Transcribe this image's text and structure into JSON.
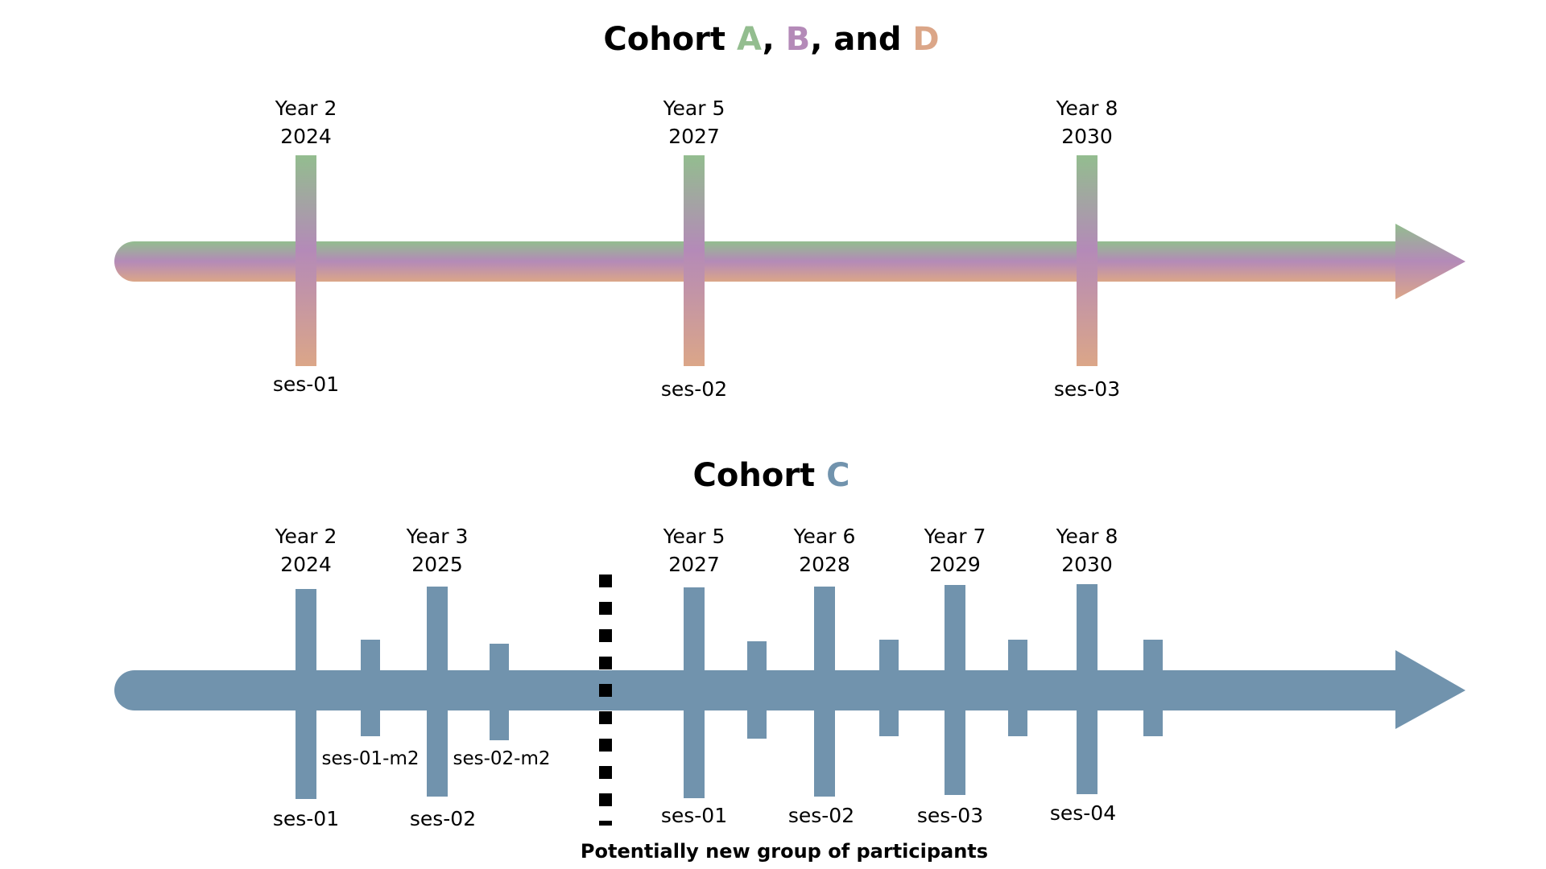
{
  "top": {
    "title_prefix": "Cohort ",
    "cohort_a": "A",
    "sep1": ", ",
    "cohort_b": "B",
    "sep2": ", and ",
    "cohort_d": "D",
    "color_a": "#93bd8f",
    "color_b": "#b48ab8",
    "color_d": "#dba688",
    "markers": [
      {
        "year": "Year 2",
        "date": "2024",
        "session": "ses-01"
      },
      {
        "year": "Year 5",
        "date": "2027",
        "session": "ses-02"
      },
      {
        "year": "Year 8",
        "date": "2030",
        "session": "ses-03"
      }
    ]
  },
  "bottom": {
    "title_prefix": "Cohort ",
    "cohort_c": "C",
    "color_c": "#7193ad",
    "markers": [
      {
        "year": "Year 2",
        "date": "2024",
        "session": "ses-01"
      },
      {
        "year": "Year 3",
        "date": "2025",
        "session": "ses-02"
      },
      {
        "year": "Year 5",
        "date": "2027",
        "session": "ses-01"
      },
      {
        "year": "Year 6",
        "date": "2028",
        "session": "ses-02"
      },
      {
        "year": "Year 7",
        "date": "2029",
        "session": "ses-03"
      },
      {
        "year": "Year 8",
        "date": "2030",
        "session": "ses-04"
      }
    ],
    "midpoints": [
      {
        "session": "ses-01-m2"
      },
      {
        "session": "ses-02-m2"
      }
    ],
    "note": "Potentially new group of participants"
  }
}
